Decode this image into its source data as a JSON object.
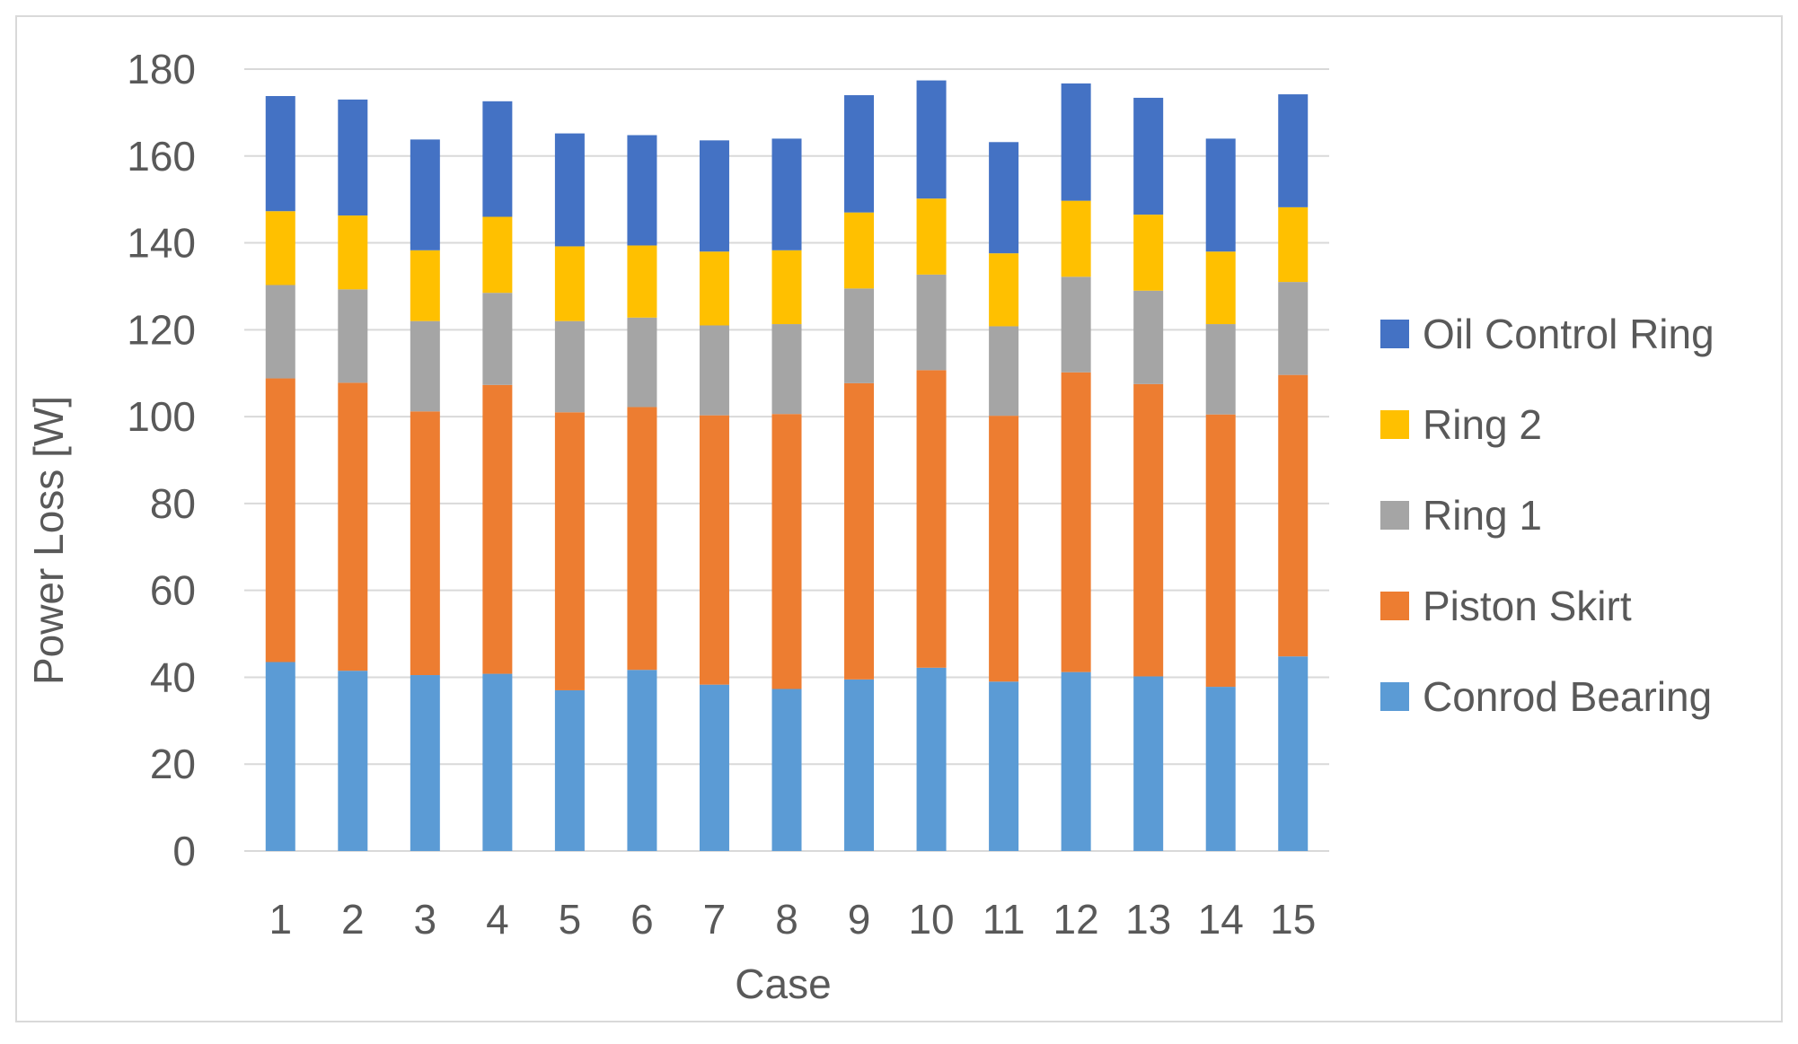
{
  "chart_data": {
    "type": "bar",
    "stacked": true,
    "title": "",
    "xlabel": "Case",
    "ylabel": "Power Loss [W]",
    "ylim": [
      0,
      180
    ],
    "ytick_step": 20,
    "yticks": [
      "0",
      "20",
      "40",
      "60",
      "80",
      "100",
      "120",
      "140",
      "160",
      "180"
    ],
    "categories": [
      "1",
      "2",
      "3",
      "4",
      "5",
      "6",
      "7",
      "8",
      "9",
      "10",
      "11",
      "12",
      "13",
      "14",
      "15"
    ],
    "grid": true,
    "legend_position": "right",
    "series": [
      {
        "name": "Conrod Bearing",
        "color": "#5b9bd5",
        "values": [
          43.5,
          41.5,
          40.5,
          40.8,
          37,
          41.7,
          38.3,
          37.3,
          39.5,
          42.2,
          39,
          41.2,
          40.2,
          37.8,
          44.8
        ]
      },
      {
        "name": "Piston Skirt",
        "color": "#ed7d31",
        "values": [
          65.3,
          66.3,
          60.7,
          66.5,
          64,
          60.5,
          62,
          63.3,
          68.2,
          68.5,
          61.2,
          69,
          67.3,
          62.7,
          64.8
        ]
      },
      {
        "name": "Ring 1",
        "color": "#a5a5a5",
        "values": [
          21.5,
          21.5,
          20.8,
          21.2,
          21,
          20.6,
          20.7,
          20.7,
          21.8,
          22,
          20.6,
          22,
          21.5,
          20.8,
          21.4
        ]
      },
      {
        "name": "Ring 2",
        "color": "#ffc000",
        "values": [
          17,
          17,
          16.3,
          17.5,
          17.2,
          16.6,
          17,
          17,
          17.5,
          17.5,
          16.8,
          17.5,
          17.5,
          16.7,
          17.2
        ]
      },
      {
        "name": "Oil Control Ring",
        "color": "#4472c4",
        "values": [
          26.5,
          26.7,
          25.5,
          26.6,
          26,
          25.4,
          25.6,
          25.7,
          27,
          27.2,
          25.6,
          27,
          26.9,
          26,
          26
        ]
      }
    ]
  }
}
